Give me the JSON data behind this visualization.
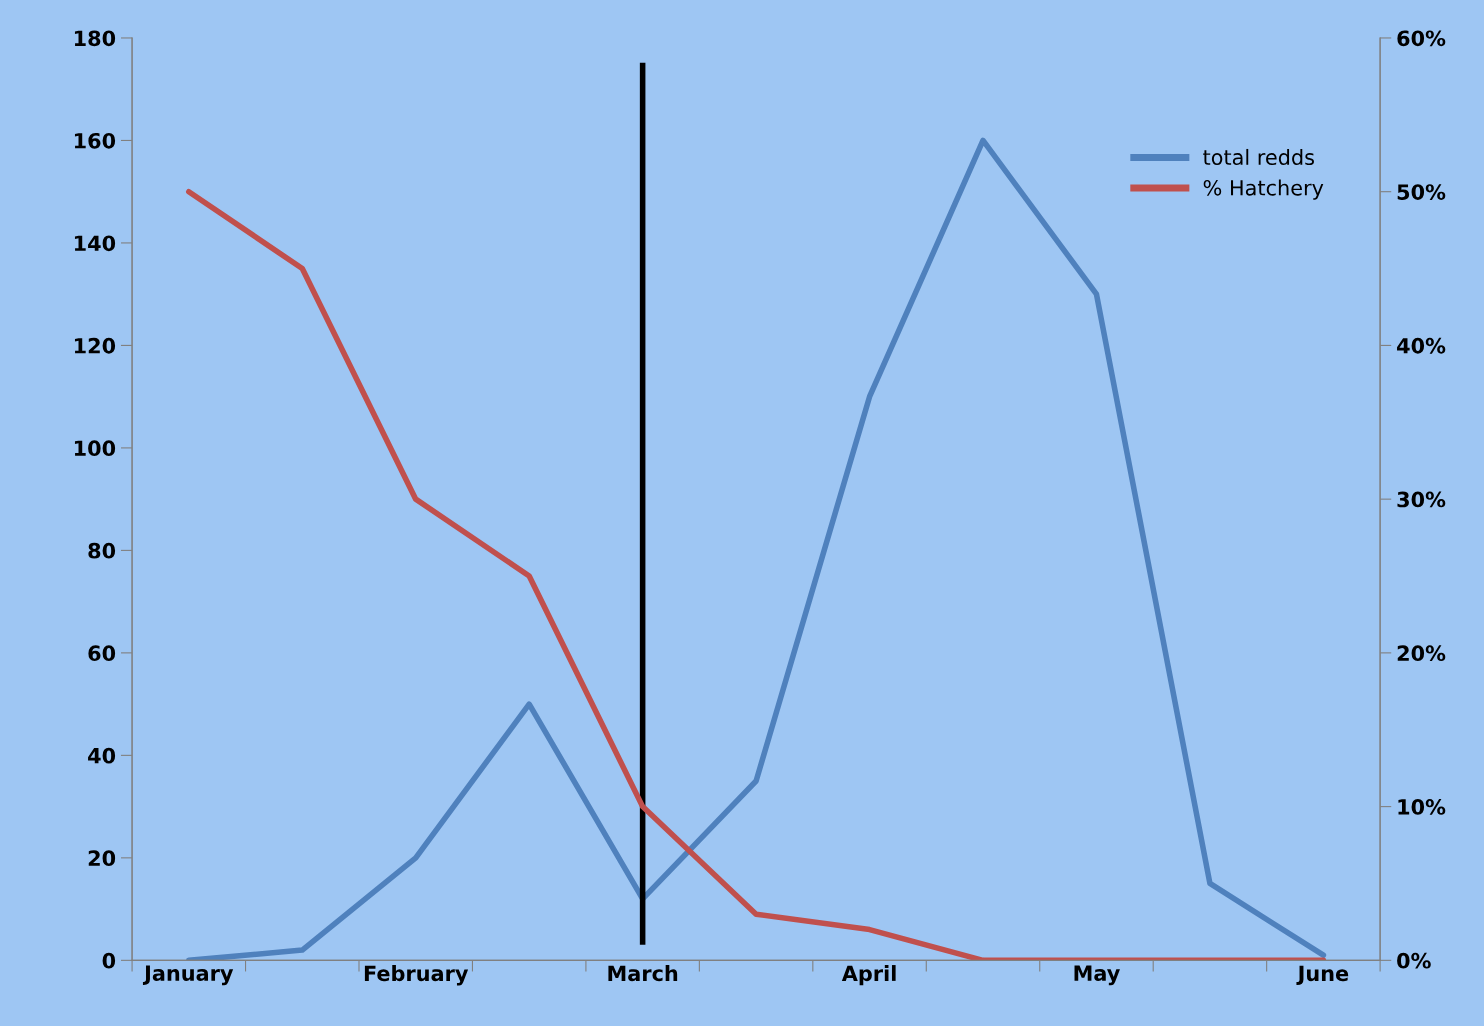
{
  "chart_data": {
    "type": "line",
    "categories": [
      "January",
      null,
      "February",
      null,
      "March",
      null,
      "April",
      null,
      "May",
      null,
      "June"
    ],
    "series": [
      {
        "name": "total redds",
        "color": "#4f81bd",
        "values": [
          0,
          2,
          20,
          50,
          12,
          35,
          110,
          160,
          130,
          15,
          1
        ]
      },
      {
        "name": "% Hatchery",
        "color": "#c0504d",
        "axis": "y2",
        "values": [
          50,
          45,
          30,
          25,
          10,
          3,
          2,
          0,
          0,
          0,
          0
        ]
      }
    ],
    "ylim": [
      0,
      180
    ],
    "yticks": [
      0,
      20,
      40,
      60,
      80,
      100,
      120,
      140,
      160,
      180
    ],
    "y2lim": [
      0,
      60
    ],
    "y2ticks": [
      {
        "value": 0,
        "label": "0%"
      },
      {
        "value": 10,
        "label": "10%"
      },
      {
        "value": 20,
        "label": "20%"
      },
      {
        "value": 30,
        "label": "30%"
      },
      {
        "value": 40,
        "label": "40%"
      },
      {
        "value": 50,
        "label": "50%"
      },
      {
        "value": 60,
        "label": "60%"
      }
    ],
    "ref_lines": [
      {
        "axis": "x",
        "value": "March",
        "color": "#000000",
        "line_style": "solid"
      }
    ],
    "legend": "top right",
    "grid": false,
    "marker": "none",
    "line_style": "solid"
  }
}
